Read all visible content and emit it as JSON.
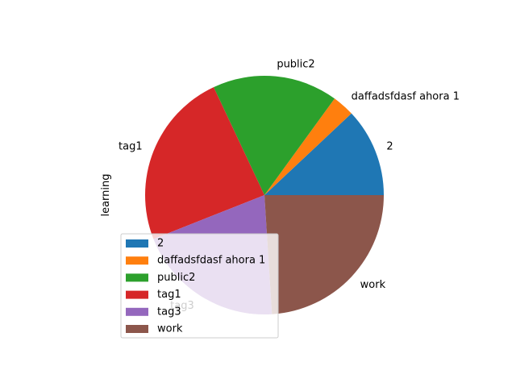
{
  "chart_data": {
    "type": "pie",
    "ylabel": "learning",
    "legend": {
      "loc": "lower-left"
    },
    "slices": [
      {
        "label": "2",
        "value": 12,
        "color": "#1f77b4"
      },
      {
        "label": "daffadsfdasf ahora 1",
        "value": 3,
        "color": "#ff7f0e"
      },
      {
        "label": "public2",
        "value": 17,
        "color": "#2ca02c"
      },
      {
        "label": "tag1",
        "value": 24,
        "color": "#d62728"
      },
      {
        "label": "tag3",
        "value": 20,
        "color": "#9467bd"
      },
      {
        "label": "work",
        "value": 24,
        "color": "#8c564b"
      }
    ]
  }
}
